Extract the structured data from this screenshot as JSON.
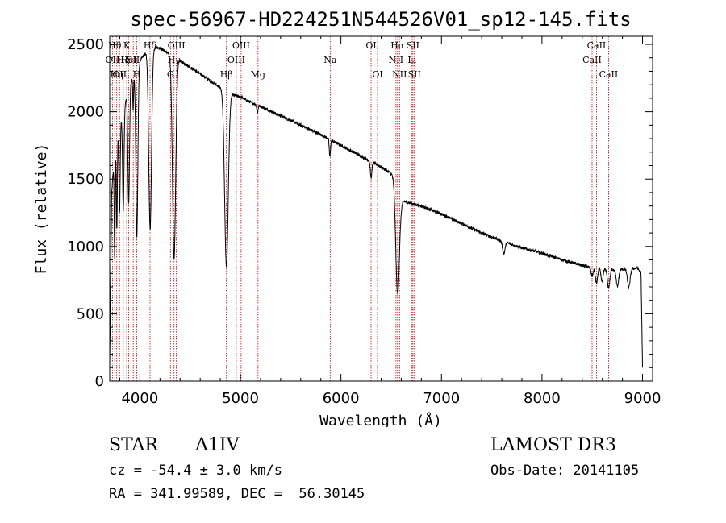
{
  "chart_data": {
    "type": "line",
    "title": "spec-56967-HD224251N544526V01_sp12-145.fits",
    "xlabel": "Wavelength (Å)",
    "ylabel": "Flux (relative)",
    "xlim": [
      3700,
      9100
    ],
    "ylim": [
      0,
      2560
    ],
    "xticks": [
      4000,
      5000,
      6000,
      7000,
      8000,
      9000
    ],
    "yticks": [
      0,
      500,
      1000,
      1500,
      2000,
      2500
    ],
    "continuum": [
      [
        3700,
        100
      ],
      [
        3720,
        1400
      ],
      [
        3760,
        1800
      ],
      [
        3800,
        1900
      ],
      [
        3900,
        2200
      ],
      [
        4000,
        2380
      ],
      [
        4100,
        2480
      ],
      [
        4200,
        2470
      ],
      [
        4300,
        2430
      ],
      [
        4400,
        2380
      ],
      [
        4500,
        2330
      ],
      [
        4600,
        2280
      ],
      [
        4700,
        2230
      ],
      [
        4800,
        2180
      ],
      [
        4900,
        2130
      ],
      [
        5000,
        2110
      ],
      [
        5100,
        2070
      ],
      [
        5200,
        2040
      ],
      [
        5400,
        1970
      ],
      [
        5600,
        1900
      ],
      [
        5800,
        1830
      ],
      [
        6000,
        1750
      ],
      [
        6200,
        1670
      ],
      [
        6400,
        1590
      ],
      [
        6560,
        1510
      ],
      [
        6600,
        1340
      ],
      [
        6800,
        1300
      ],
      [
        7000,
        1240
      ],
      [
        7200,
        1170
      ],
      [
        7400,
        1100
      ],
      [
        7600,
        1040
      ],
      [
        7800,
        990
      ],
      [
        8000,
        950
      ],
      [
        8200,
        900
      ],
      [
        8400,
        860
      ],
      [
        8500,
        840
      ],
      [
        8700,
        830
      ],
      [
        8800,
        830
      ],
      [
        8950,
        840
      ],
      [
        8985,
        800
      ],
      [
        9000,
        100
      ]
    ],
    "absorption": [
      {
        "center": 3750,
        "depth": 800,
        "width": 5
      },
      {
        "center": 3771,
        "depth": 700,
        "width": 5
      },
      {
        "center": 3798,
        "depth": 650,
        "width": 6
      },
      {
        "center": 3835,
        "depth": 750,
        "width": 7
      },
      {
        "center": 3889,
        "depth": 850,
        "width": 8
      },
      {
        "center": 3933,
        "depth": 250,
        "width": 4
      },
      {
        "center": 3970,
        "depth": 1250,
        "width": 10
      },
      {
        "center": 4102,
        "depth": 1350,
        "width": 14
      },
      {
        "center": 4340,
        "depth": 1500,
        "width": 16
      },
      {
        "center": 4861,
        "depth": 1300,
        "width": 18
      },
      {
        "center": 5169,
        "depth": 60,
        "width": 6
      },
      {
        "center": 5890,
        "depth": 130,
        "width": 6
      },
      {
        "center": 6300,
        "depth": 120,
        "width": 8
      },
      {
        "center": 6563,
        "depth": 850,
        "width": 18
      },
      {
        "center": 7620,
        "depth": 90,
        "width": 12
      },
      {
        "center": 8498,
        "depth": 60,
        "width": 10
      },
      {
        "center": 8542,
        "depth": 110,
        "width": 11
      },
      {
        "center": 8598,
        "depth": 100,
        "width": 10
      },
      {
        "center": 8662,
        "depth": 140,
        "width": 12
      },
      {
        "center": 8750,
        "depth": 130,
        "width": 12
      },
      {
        "center": 8863,
        "depth": 140,
        "width": 13
      }
    ],
    "reference_lines": [
      {
        "x": 3727,
        "label": "OII",
        "row": 1
      },
      {
        "x": 3750,
        "label": "Hθ",
        "row": 0
      },
      {
        "x": 3770,
        "label": "Hη",
        "row": 2
      },
      {
        "x": 3798,
        "label": "OII",
        "row": 2
      },
      {
        "x": 3835,
        "label": "Hζ",
        "row": 1
      },
      {
        "x": 3869,
        "label": "K",
        "row": 0
      },
      {
        "x": 3889,
        "label": "HeI",
        "row": 1
      },
      {
        "x": 3934,
        "label": "SII",
        "row": 1
      },
      {
        "x": 3969,
        "label": "H",
        "row": 2
      },
      {
        "x": 4101,
        "label": "Hδ",
        "row": 0
      },
      {
        "x": 4304,
        "label": "G",
        "row": 2
      },
      {
        "x": 4340,
        "label": "Hγ",
        "row": 1
      },
      {
        "x": 4363,
        "label": "OIII",
        "row": 0
      },
      {
        "x": 4861,
        "label": "Hβ",
        "row": 2
      },
      {
        "x": 4959,
        "label": "OIII",
        "row": 1
      },
      {
        "x": 5007,
        "label": "OIII",
        "row": 0
      },
      {
        "x": 5175,
        "label": "Mg",
        "row": 2
      },
      {
        "x": 5893,
        "label": "Na",
        "row": 1
      },
      {
        "x": 6300,
        "label": "OI",
        "row": 0
      },
      {
        "x": 6364,
        "label": "OI",
        "row": 2
      },
      {
        "x": 6548,
        "label": "NII",
        "row": 1
      },
      {
        "x": 6563,
        "label": "Hα",
        "row": 0
      },
      {
        "x": 6583,
        "label": "NII",
        "row": 2
      },
      {
        "x": 6707,
        "label": "Li",
        "row": 1
      },
      {
        "x": 6716,
        "label": "SII",
        "row": 0
      },
      {
        "x": 6731,
        "label": "SII",
        "row": 2
      },
      {
        "x": 8498,
        "label": "CaII",
        "row": 1
      },
      {
        "x": 8542,
        "label": "CaII",
        "row": 0
      },
      {
        "x": 8662,
        "label": "CaII",
        "row": 2
      }
    ]
  },
  "info": {
    "object_type": "STAR",
    "subclass": "A1IV",
    "survey": "LAMOST DR3",
    "redshift": "cz = -54.4 ± 3.0 km/s",
    "obs_date": "Obs-Date: 20141105",
    "coords": "RA = 341.99589, DEC =  56.30145"
  }
}
